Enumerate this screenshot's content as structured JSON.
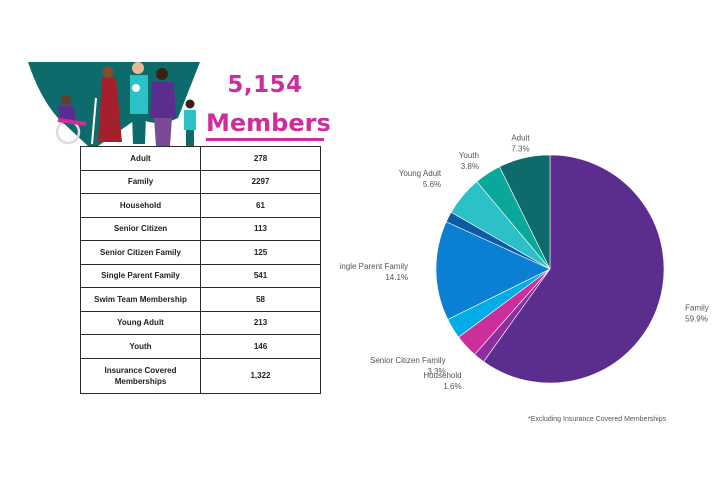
{
  "header": {
    "total": "5,154",
    "members_label": "Members"
  },
  "table": {
    "rows": [
      {
        "label": "Adult",
        "value": "278"
      },
      {
        "label": "Family",
        "value": "2297"
      },
      {
        "label": "Household",
        "value": "61"
      },
      {
        "label": "Senior Citizen",
        "value": "113"
      },
      {
        "label": "Senior Citizen Family",
        "value": "125"
      },
      {
        "label": "Single Parent Family",
        "value": "541"
      },
      {
        "label": "Swim Team Membership",
        "value": "58"
      },
      {
        "label": "Young Adult",
        "value": "213"
      },
      {
        "label": "Youth",
        "value": "146"
      },
      {
        "label": "Insurance Covered Memberships",
        "value": "1,322"
      }
    ]
  },
  "chart_data": {
    "type": "pie",
    "slices": [
      {
        "label": "Family",
        "value": 59.9,
        "display": "59.9%",
        "color": "#5b2d8e"
      },
      {
        "label": "Household",
        "value": 1.6,
        "display": "1.6%",
        "color": "#8e2e9c"
      },
      {
        "label": "Senior Citizen Family",
        "value": 3.3,
        "display": "3.3%",
        "color": "#cc2e9c"
      },
      {
        "label": "",
        "value": 2.9,
        "display": "",
        "color": "#00aee6"
      },
      {
        "label": "Single Parent Family",
        "value": 14.1,
        "display": "14.1%",
        "color": "#0b7fd1"
      },
      {
        "label": "",
        "value": 1.5,
        "display": "",
        "color": "#0d5aa8"
      },
      {
        "label": "Young Adult",
        "value": 5.6,
        "display": "5.6%",
        "color": "#2bc1c6"
      },
      {
        "label": "Youth",
        "value": 3.8,
        "display": "3.8%",
        "color": "#0aa89a"
      },
      {
        "label": "Adult",
        "value": 7.3,
        "display": "7.3%",
        "color": "#0e6b6b"
      }
    ]
  },
  "footnote": "*Excluding Insurance Covered Memberships",
  "colors": {
    "accent": "#cc2e9c",
    "illustration_bg": "#0e6b6b"
  }
}
